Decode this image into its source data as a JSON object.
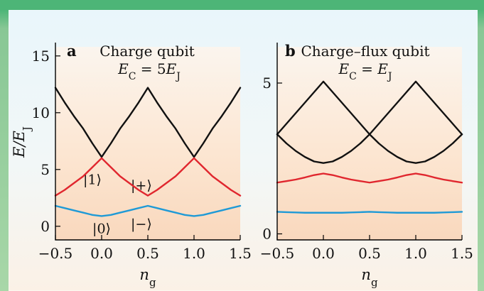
{
  "chart_data": [
    {
      "panel_letter": "a",
      "title": "Charge qubit",
      "subtitle": "E_C = 5E_J",
      "type": "line",
      "xlabel": "n_g",
      "ylabel": "E/E_J",
      "xlim": [
        -0.5,
        1.5
      ],
      "ylim": [
        -1.2,
        15.8
      ],
      "xticks": [
        -0.5,
        0.0,
        0.5,
        1.0,
        1.5
      ],
      "xtick_labels": [
        "−0.5",
        "0.0",
        "0.5",
        "1.0",
        "1.5"
      ],
      "yticks": [
        0,
        5,
        10,
        15
      ],
      "ytick_labels": [
        "0",
        "5",
        "10",
        "15"
      ],
      "series": [
        {
          "color": "#111111",
          "x": [
            -0.5,
            -0.4,
            -0.3,
            -0.2,
            -0.1,
            0.0,
            0.1,
            0.2,
            0.3,
            0.4,
            0.5,
            0.6,
            0.7,
            0.8,
            0.9,
            1.0,
            1.1,
            1.2,
            1.3,
            1.4,
            1.5
          ],
          "y": [
            12.2,
            10.9,
            9.7,
            8.6,
            7.3,
            6.1,
            7.3,
            8.6,
            9.7,
            10.9,
            12.2,
            10.9,
            9.7,
            8.6,
            7.3,
            6.1,
            7.3,
            8.6,
            9.7,
            10.9,
            12.2
          ]
        },
        {
          "color": "#e0262e",
          "x": [
            -0.5,
            -0.4,
            -0.3,
            -0.2,
            -0.1,
            0.0,
            0.1,
            0.2,
            0.3,
            0.4,
            0.5,
            0.6,
            0.7,
            0.8,
            0.9,
            1.0,
            1.1,
            1.2,
            1.3,
            1.4,
            1.5
          ],
          "y": [
            2.7,
            3.2,
            3.8,
            4.4,
            5.2,
            6.0,
            5.2,
            4.4,
            3.8,
            3.2,
            2.7,
            3.2,
            3.8,
            4.4,
            5.2,
            6.0,
            5.2,
            4.4,
            3.8,
            3.2,
            2.7
          ]
        },
        {
          "color": "#1f9ad6",
          "x": [
            -0.5,
            -0.4,
            -0.3,
            -0.2,
            -0.1,
            0.0,
            0.1,
            0.2,
            0.3,
            0.4,
            0.5,
            0.6,
            0.7,
            0.8,
            0.9,
            1.0,
            1.1,
            1.2,
            1.3,
            1.4,
            1.5
          ],
          "y": [
            1.8,
            1.6,
            1.4,
            1.2,
            1.0,
            0.9,
            1.0,
            1.2,
            1.4,
            1.6,
            1.8,
            1.6,
            1.4,
            1.2,
            1.0,
            0.9,
            1.0,
            1.2,
            1.4,
            1.6,
            1.8
          ]
        }
      ],
      "annotations": [
        "|1⟩",
        "|+⟩",
        "|0⟩",
        "|−⟩"
      ],
      "grid": false,
      "legend": "none"
    },
    {
      "panel_letter": "b",
      "title": "Charge–flux qubit",
      "subtitle": "E_C = E_J",
      "type": "line",
      "xlabel": "n_g",
      "ylabel": "",
      "xlim": [
        -0.5,
        1.5
      ],
      "ylim": [
        -0.2,
        6.2
      ],
      "xticks": [
        -0.5,
        0.0,
        0.5,
        1.0,
        1.5
      ],
      "xtick_labels": [
        "−0.5",
        "0.0",
        "0.5",
        "1.0",
        "1.5"
      ],
      "yticks": [
        0,
        5
      ],
      "ytick_labels": [
        "0",
        "5"
      ],
      "series": [
        {
          "color": "#111111",
          "x": [
            -0.5,
            -0.4,
            -0.3,
            -0.2,
            -0.1,
            0.0,
            0.1,
            0.2,
            0.3,
            0.4,
            0.5,
            0.6,
            0.7,
            0.8,
            0.9,
            1.0,
            1.1,
            1.2,
            1.3,
            1.4,
            1.5
          ],
          "y": [
            3.3,
            3.65,
            4.0,
            4.35,
            4.7,
            5.05,
            4.7,
            4.35,
            4.0,
            3.65,
            3.3,
            3.65,
            4.0,
            4.35,
            4.7,
            5.05,
            4.7,
            4.35,
            4.0,
            3.65,
            3.3
          ]
        },
        {
          "color": "#111111",
          "x": [
            -0.5,
            -0.4,
            -0.3,
            -0.2,
            -0.1,
            0.0,
            0.1,
            0.2,
            0.3,
            0.4,
            0.5,
            0.6,
            0.7,
            0.8,
            0.9,
            1.0,
            1.1,
            1.2,
            1.3,
            1.4,
            1.5
          ],
          "y": [
            3.3,
            3.0,
            2.75,
            2.55,
            2.4,
            2.35,
            2.4,
            2.55,
            2.75,
            3.0,
            3.3,
            3.0,
            2.75,
            2.55,
            2.4,
            2.35,
            2.4,
            2.55,
            2.75,
            3.0,
            3.3
          ]
        },
        {
          "color": "#e0262e",
          "x": [
            -0.5,
            -0.4,
            -0.3,
            -0.2,
            -0.1,
            0.0,
            0.1,
            0.2,
            0.3,
            0.4,
            0.5,
            0.6,
            0.7,
            0.8,
            0.9,
            1.0,
            1.1,
            1.2,
            1.3,
            1.4,
            1.5
          ],
          "y": [
            1.7,
            1.75,
            1.8,
            1.87,
            1.95,
            2.0,
            1.95,
            1.87,
            1.8,
            1.75,
            1.7,
            1.75,
            1.8,
            1.87,
            1.95,
            2.0,
            1.95,
            1.87,
            1.8,
            1.75,
            1.7
          ]
        },
        {
          "color": "#1f9ad6",
          "x": [
            -0.5,
            -0.4,
            -0.3,
            -0.2,
            -0.1,
            0.0,
            0.1,
            0.2,
            0.3,
            0.4,
            0.5,
            0.6,
            0.7,
            0.8,
            0.9,
            1.0,
            1.1,
            1.2,
            1.3,
            1.4,
            1.5
          ],
          "y": [
            0.73,
            0.72,
            0.71,
            0.7,
            0.7,
            0.7,
            0.7,
            0.7,
            0.71,
            0.72,
            0.73,
            0.72,
            0.71,
            0.7,
            0.7,
            0.7,
            0.7,
            0.7,
            0.71,
            0.72,
            0.73
          ]
        }
      ],
      "grid": false,
      "legend": "none"
    }
  ]
}
